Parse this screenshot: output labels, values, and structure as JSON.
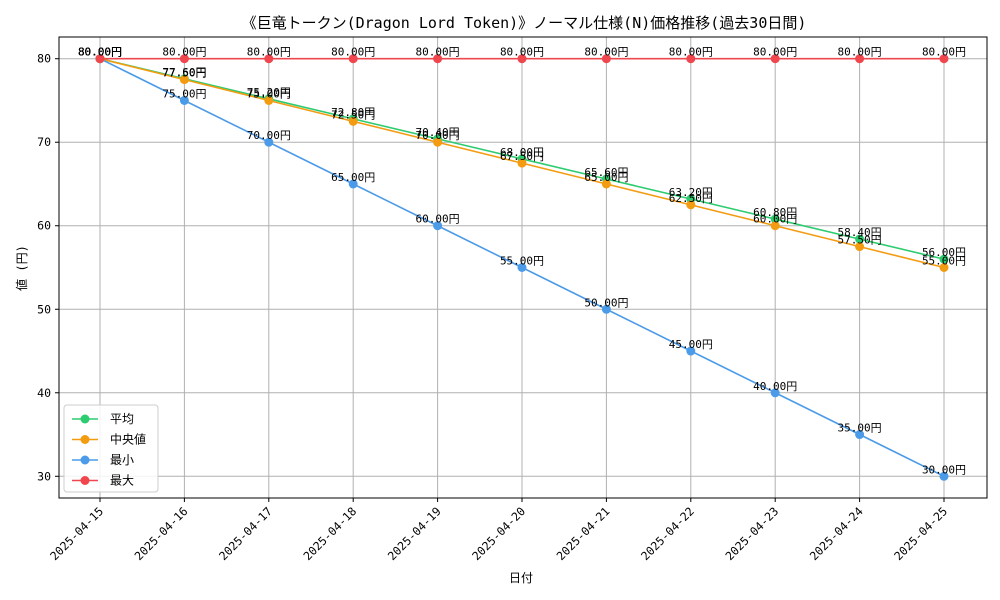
{
  "chart_data": {
    "type": "line",
    "title": "《巨竜トークン(Dragon Lord Token)》ノーマル仕様(N)価格推移(過去30日間)",
    "xlabel": "日付",
    "ylabel": "値 (円)",
    "ylim": [
      27.4,
      82.6
    ],
    "yticks": [
      30,
      40,
      50,
      60,
      70,
      80
    ],
    "grid": true,
    "legend_position": "lower-left",
    "x": [
      "2025-04-15",
      "2025-04-16",
      "2025-04-17",
      "2025-04-18",
      "2025-04-19",
      "2025-04-20",
      "2025-04-21",
      "2025-04-22",
      "2025-04-23",
      "2025-04-24",
      "2025-04-25"
    ],
    "series": [
      {
        "name": "平均",
        "color": "#2ecc71",
        "values": [
          80.0,
          77.6,
          75.2,
          72.8,
          70.4,
          68.0,
          65.6,
          63.2,
          60.8,
          58.4,
          56.0
        ],
        "labels": [
          "80.00円",
          "77.60円",
          "75.20円",
          "72.80円",
          "70.40円",
          "68.00円",
          "65.60円",
          "63.20円",
          "60.80円",
          "58.40円",
          "56.00円"
        ]
      },
      {
        "name": "中央値",
        "color": "#f39c12",
        "values": [
          80.0,
          77.5,
          75.0,
          72.5,
          70.0,
          67.5,
          65.0,
          62.5,
          60.0,
          57.5,
          55.0
        ],
        "labels": [
          "80.00円",
          "77.50円",
          "75.00円",
          "72.50円",
          "70.00円",
          "67.50円",
          "65.00円",
          "62.50円",
          "60.00円",
          "57.50円",
          "55.00円"
        ]
      },
      {
        "name": "最小",
        "color": "#4c9be8",
        "values": [
          80.0,
          75.0,
          70.0,
          65.0,
          60.0,
          55.0,
          50.0,
          45.0,
          40.0,
          35.0,
          30.0
        ],
        "labels": [
          "80.00円",
          "75.00円",
          "70.00円",
          "65.00円",
          "60.00円",
          "55.00円",
          "50.00円",
          "45.00円",
          "40.00円",
          "35.00円",
          "30.00円"
        ]
      },
      {
        "name": "最大",
        "color": "#f0474f",
        "values": [
          80.0,
          80.0,
          80.0,
          80.0,
          80.0,
          80.0,
          80.0,
          80.0,
          80.0,
          80.0,
          80.0
        ],
        "labels": [
          "80.00円",
          "80.00円",
          "80.00円",
          "80.00円",
          "80.00円",
          "80.00円",
          "80.00円",
          "80.00円",
          "80.00円",
          "80.00円",
          "80.00円"
        ]
      }
    ]
  }
}
